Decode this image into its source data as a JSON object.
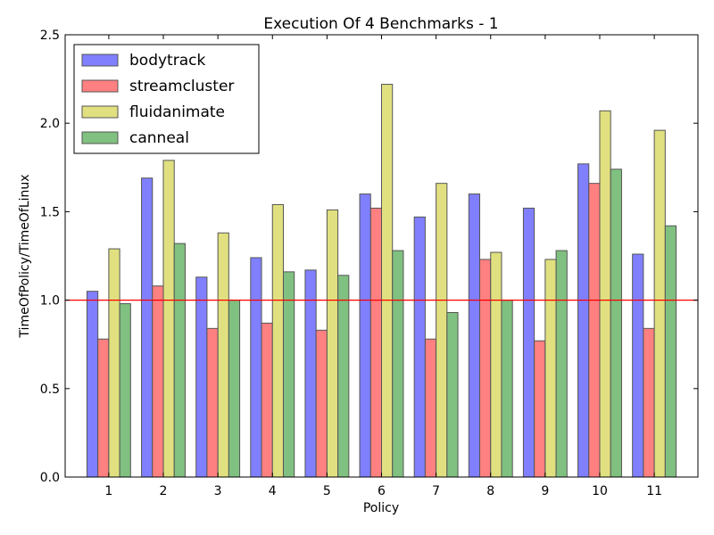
{
  "chart_data": {
    "type": "bar",
    "title": "Execution Of 4 Benchmarks - 1",
    "xlabel": "Policy",
    "ylabel": "TimeOfPolicy/TimeOfLinux",
    "categories": [
      "1",
      "2",
      "3",
      "4",
      "5",
      "6",
      "7",
      "8",
      "9",
      "10",
      "11"
    ],
    "ylim": [
      0,
      2.5
    ],
    "yticks": [
      "0.0",
      "0.5",
      "1.0",
      "1.5",
      "2.0",
      "2.5"
    ],
    "reference_line": {
      "y": 1.0,
      "color": "#ff0000"
    },
    "legend_position": "top-left",
    "grid": false,
    "series": [
      {
        "name": "bodytrack",
        "color": "#8080ff",
        "values": [
          1.05,
          1.69,
          1.13,
          1.24,
          1.17,
          1.6,
          1.47,
          1.6,
          1.52,
          1.77,
          1.26
        ]
      },
      {
        "name": "streamcluster",
        "color": "#ff8080",
        "values": [
          0.78,
          1.08,
          0.84,
          0.87,
          0.83,
          1.52,
          0.78,
          1.23,
          0.77,
          1.66,
          0.84
        ]
      },
      {
        "name": "fluidanimate",
        "color": "#e0e080",
        "values": [
          1.29,
          1.79,
          1.38,
          1.54,
          1.51,
          2.22,
          1.66,
          1.27,
          1.23,
          2.07,
          1.96
        ]
      },
      {
        "name": "canneal",
        "color": "#80c080",
        "values": [
          0.98,
          1.32,
          1.0,
          1.16,
          1.14,
          1.28,
          0.93,
          1.0,
          1.28,
          1.74,
          1.42
        ]
      }
    ]
  }
}
